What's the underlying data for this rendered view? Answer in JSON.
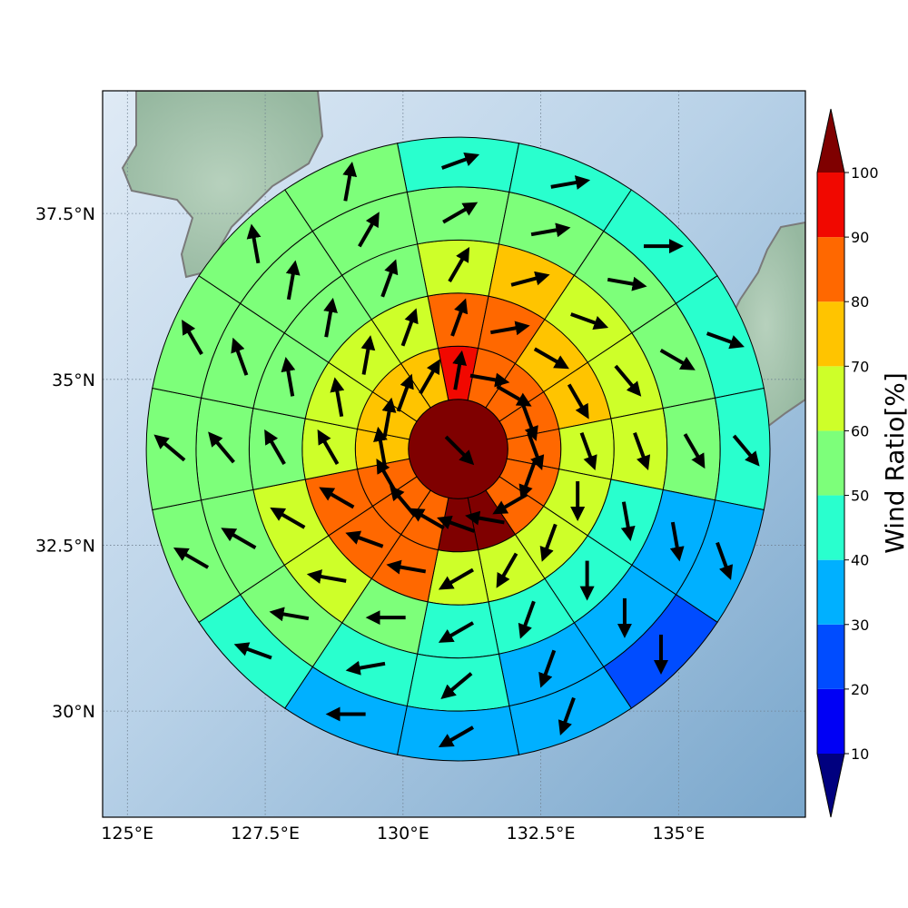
{
  "map": {
    "lon_range": [
      124.55,
      137.3
    ],
    "lat_range": [
      28.4,
      39.35
    ],
    "center": {
      "lon": 131.0,
      "lat": 33.95
    },
    "x_ticks": [
      "125°E",
      "127.5°E",
      "130°E",
      "132.5°E",
      "135°E"
    ],
    "x_tick_values": [
      125,
      127.5,
      130,
      132.5,
      135
    ],
    "y_ticks": [
      "30°N",
      "32.5°N",
      "35°N",
      "37.5°N"
    ],
    "y_tick_values": [
      30,
      32.5,
      35,
      37.5
    ],
    "gridlines": true,
    "coastline_color": "#7a7a7a",
    "ocean_color_light": "#dce9f5",
    "ocean_color_dark": "#7aa7cc",
    "land_color": "#a9c8b0"
  },
  "colorbar": {
    "label": "Wind Ratio[%]",
    "ticks": [
      "10",
      "20",
      "30",
      "40",
      "50",
      "60",
      "70",
      "80",
      "90",
      "100"
    ],
    "bins": [
      {
        "from": 0,
        "to": 10,
        "color": "#00007f"
      },
      {
        "from": 10,
        "to": 20,
        "color": "#0000f5"
      },
      {
        "from": 20,
        "to": 30,
        "color": "#004cff"
      },
      {
        "from": 30,
        "to": 40,
        "color": "#00b0ff"
      },
      {
        "from": 40,
        "to": 50,
        "color": "#29ffce"
      },
      {
        "from": 50,
        "to": 60,
        "color": "#7dff7a"
      },
      {
        "from": 60,
        "to": 70,
        "color": "#ceff29"
      },
      {
        "from": 70,
        "to": 80,
        "color": "#ffc400"
      },
      {
        "from": 80,
        "to": 90,
        "color": "#ff6800"
      },
      {
        "from": 90,
        "to": 100,
        "color": "#f10800"
      },
      {
        "from": 100,
        "to": 110,
        "color": "#7f0000"
      }
    ],
    "extend": "both"
  },
  "chart_data": {
    "type": "heatmap",
    "description_kind": "polar wind-ratio sectors with wind direction arrows",
    "sector_order": "clockwise from north, 16 sectors",
    "ring_radii_deg": [
      0.75,
      1.55,
      2.35,
      3.15,
      3.95,
      4.7
    ],
    "rings": [
      {
        "ring": 1,
        "ratios": [
          100
        ]
      },
      {
        "ring": 2,
        "ratios": [
          95,
          85,
          85,
          85,
          85,
          85,
          85,
          100,
          100,
          85,
          85,
          85,
          75,
          75,
          75,
          75
        ]
      },
      {
        "ring": 3,
        "ratios": [
          85,
          85,
          75,
          75,
          65,
          65,
          65,
          65,
          65,
          85,
          85,
          85,
          65,
          65,
          65,
          65
        ]
      },
      {
        "ring": 4,
        "ratios": [
          65,
          75,
          65,
          65,
          65,
          45,
          45,
          45,
          45,
          55,
          65,
          65,
          55,
          55,
          55,
          55
        ]
      },
      {
        "ring": 5,
        "ratios": [
          55,
          55,
          55,
          55,
          55,
          35,
          35,
          35,
          45,
          45,
          55,
          55,
          55,
          55,
          55,
          55
        ]
      },
      {
        "ring": 6,
        "ratios": [
          45,
          45,
          45,
          45,
          45,
          35,
          25,
          35,
          35,
          35,
          45,
          55,
          55,
          55,
          55,
          55
        ]
      }
    ],
    "arrow_directions_deg_to": [
      {
        "ring": 1,
        "dirs": [
          135
        ]
      },
      {
        "ring": 2,
        "dirs": [
          10,
          100,
          120,
          160,
          160,
          200,
          240,
          280,
          290,
          300,
          320,
          330,
          350,
          10,
          20,
          30
        ]
      },
      {
        "ring": 3,
        "dirs": [
          20,
          80,
          120,
          150,
          160,
          180,
          200,
          210,
          240,
          280,
          290,
          300,
          330,
          350,
          10,
          20
        ]
      },
      {
        "ring": 4,
        "dirs": [
          30,
          75,
          110,
          140,
          160,
          170,
          180,
          200,
          240,
          270,
          280,
          300,
          330,
          350,
          10,
          20
        ]
      },
      {
        "ring": 5,
        "dirs": [
          60,
          80,
          100,
          120,
          150,
          170,
          180,
          200,
          230,
          260,
          280,
          300,
          320,
          340,
          10,
          30
        ]
      },
      {
        "ring": 6,
        "dirs": [
          70,
          80,
          90,
          110,
          140,
          160,
          180,
          200,
          240,
          270,
          290,
          300,
          310,
          330,
          350,
          10
        ]
      }
    ]
  }
}
